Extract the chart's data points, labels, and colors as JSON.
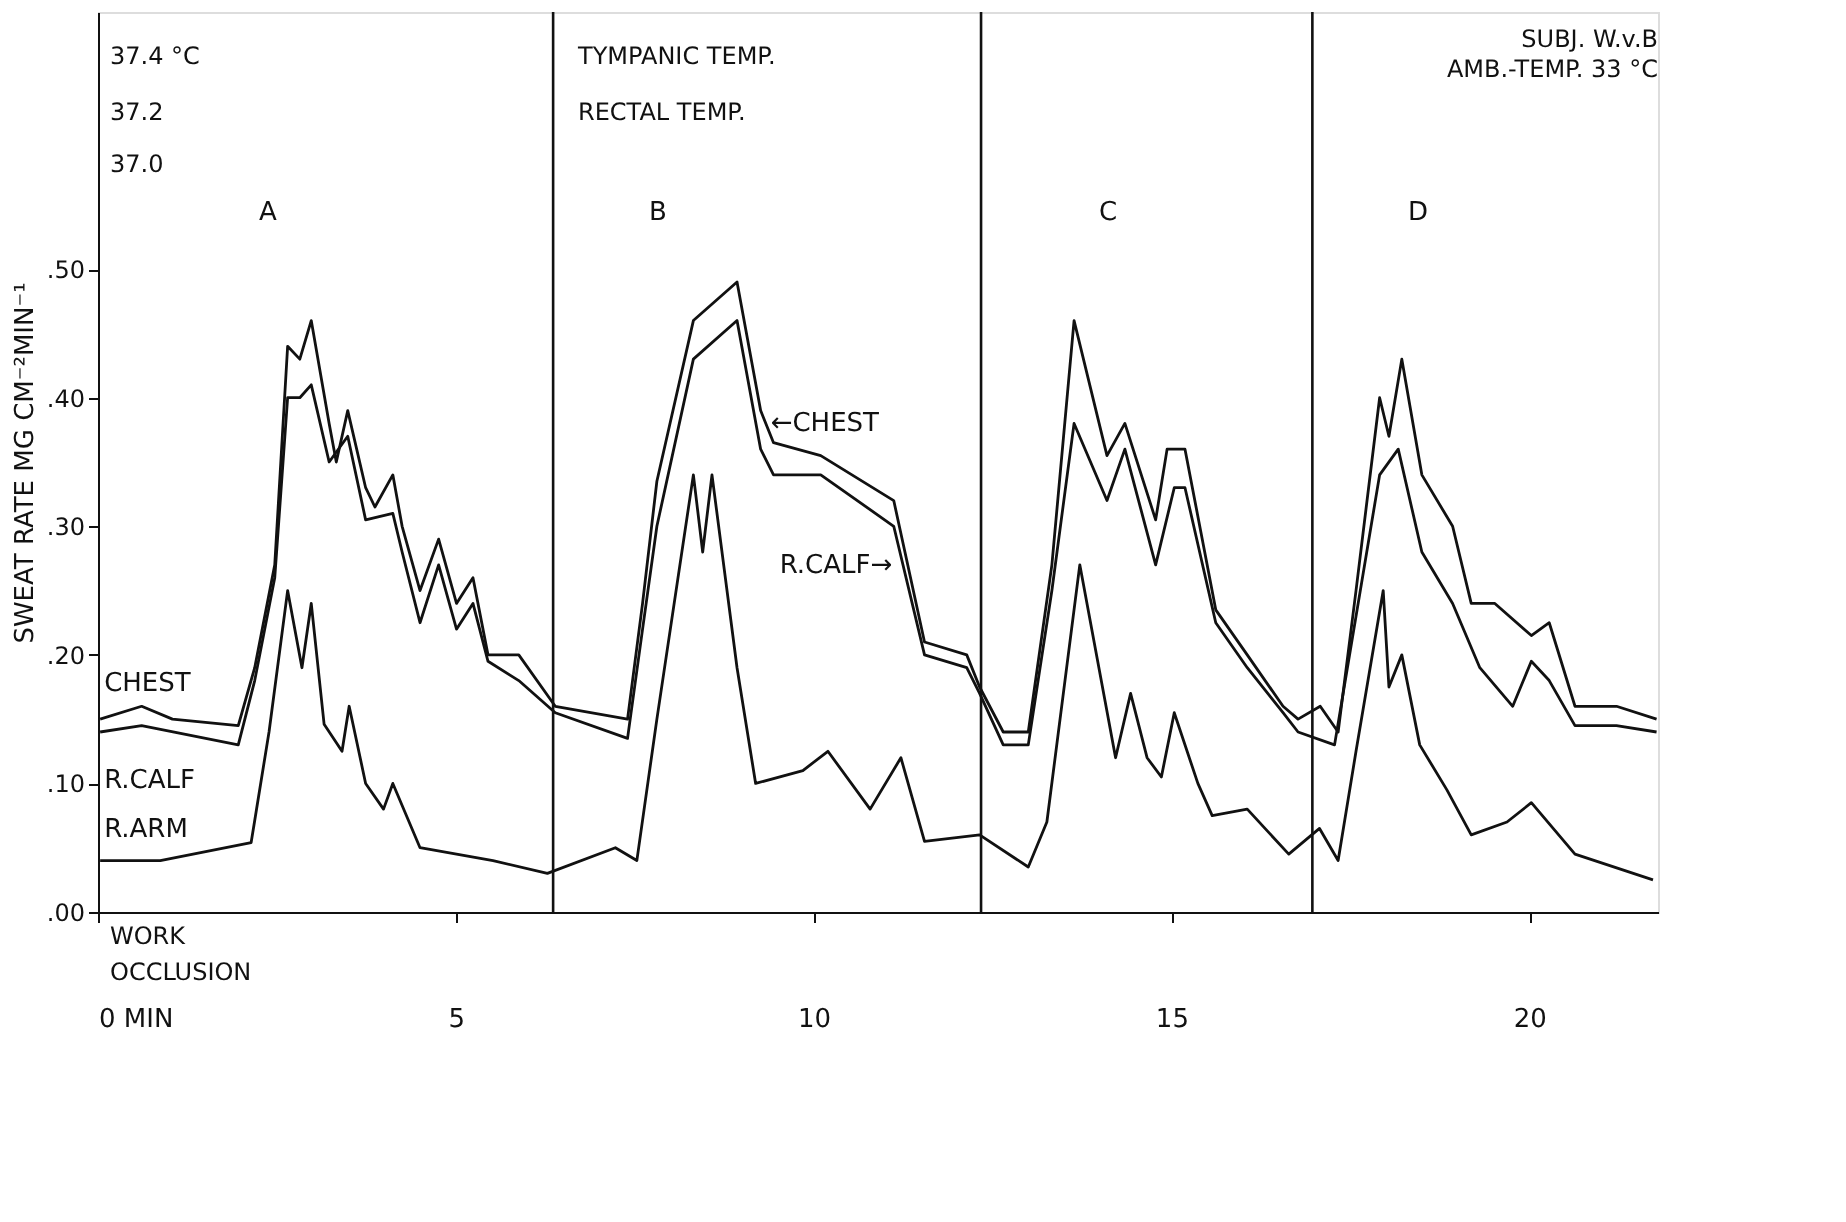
{
  "chart_data": {
    "type": "line",
    "title": "SUBJ. W.v.B",
    "subtitle": "AMB.-TEMP. 33 °C",
    "ylabel": "SWEAT RATE  MG CM⁻²MIN⁻¹",
    "xlim": [
      0,
      21.8
    ],
    "xticks": [
      {
        "value": 0,
        "label": "0 MIN"
      },
      5,
      10,
      15,
      20
    ],
    "ylim": [
      0,
      0.7
    ],
    "yticks": [
      {
        "value": 0,
        "label": ".00"
      },
      {
        "value": 0.1,
        "label": ".10"
      },
      {
        "value": 0.2,
        "label": ".20"
      },
      {
        "value": 0.3,
        "label": ".30"
      },
      {
        "value": 0.4,
        "label": ".40"
      },
      {
        "value": 0.5,
        "label": ".50"
      }
    ],
    "grid": false,
    "line_style": "solid",
    "series": [
      {
        "name": "CHEST",
        "color": "#111111",
        "x": [
          0.03,
          0.61,
          1.04,
          1.96,
          2.19,
          2.47,
          2.65,
          2.82,
          2.98,
          3.23,
          3.33,
          3.49,
          3.74,
          3.87,
          4.12,
          4.25,
          4.5,
          4.76,
          5.01,
          5.24,
          5.45,
          5.88,
          6.39,
          7.4,
          7.61,
          7.81,
          8.32,
          8.93,
          9.26,
          9.44,
          10.1,
          11.12,
          11.55,
          12.14,
          12.32,
          12.65,
          13.0,
          13.33,
          13.64,
          14.1,
          14.35,
          14.78,
          14.94,
          15.19,
          15.62,
          16.06,
          16.56,
          16.77,
          17.08,
          17.33,
          17.58,
          17.91,
          18.04,
          18.22,
          18.5,
          18.93,
          19.19,
          19.52,
          20.03,
          20.28,
          20.64,
          21.22,
          21.78
        ],
        "values": [
          0.15,
          0.16,
          0.15,
          0.145,
          0.19,
          0.27,
          0.44,
          0.43,
          0.46,
          0.38,
          0.35,
          0.39,
          0.33,
          0.315,
          0.34,
          0.3,
          0.25,
          0.29,
          0.24,
          0.26,
          0.2,
          0.2,
          0.16,
          0.15,
          0.24,
          0.335,
          0.46,
          0.49,
          0.39,
          0.365,
          0.355,
          0.32,
          0.21,
          0.2,
          0.175,
          0.14,
          0.14,
          0.27,
          0.46,
          0.355,
          0.38,
          0.305,
          0.36,
          0.36,
          0.235,
          0.2,
          0.16,
          0.15,
          0.16,
          0.14,
          0.25,
          0.4,
          0.37,
          0.43,
          0.34,
          0.3,
          0.24,
          0.24,
          0.215,
          0.225,
          0.16,
          0.16,
          0.15
        ]
      },
      {
        "name": "R.CALF",
        "color": "#111111",
        "x": [
          0.03,
          0.61,
          1.96,
          2.19,
          2.47,
          2.65,
          2.82,
          2.98,
          3.23,
          3.49,
          3.74,
          4.12,
          4.25,
          4.5,
          4.76,
          5.01,
          5.24,
          5.45,
          5.88,
          6.39,
          7.4,
          7.61,
          7.81,
          8.32,
          8.93,
          9.26,
          9.44,
          10.1,
          11.12,
          11.55,
          12.14,
          12.32,
          12.65,
          13.0,
          13.33,
          13.64,
          14.1,
          14.35,
          14.78,
          15.04,
          15.19,
          15.62,
          16.06,
          16.56,
          16.77,
          17.28,
          17.58,
          17.91,
          18.17,
          18.5,
          18.93,
          19.31,
          19.77,
          20.03,
          20.28,
          20.64,
          21.22,
          21.78
        ],
        "values": [
          0.14,
          0.145,
          0.13,
          0.18,
          0.26,
          0.4,
          0.4,
          0.41,
          0.35,
          0.37,
          0.305,
          0.31,
          0.28,
          0.225,
          0.27,
          0.22,
          0.24,
          0.195,
          0.18,
          0.155,
          0.135,
          0.22,
          0.3,
          0.43,
          0.46,
          0.36,
          0.34,
          0.34,
          0.3,
          0.2,
          0.19,
          0.17,
          0.13,
          0.13,
          0.25,
          0.38,
          0.32,
          0.36,
          0.27,
          0.33,
          0.33,
          0.225,
          0.19,
          0.155,
          0.14,
          0.13,
          0.23,
          0.34,
          0.36,
          0.28,
          0.24,
          0.19,
          0.16,
          0.195,
          0.18,
          0.145,
          0.145,
          0.14
        ]
      },
      {
        "name": "R.ARM",
        "color": "#111111",
        "x": [
          0.03,
          0.87,
          2.14,
          2.39,
          2.65,
          2.85,
          2.98,
          3.16,
          3.41,
          3.51,
          3.74,
          3.99,
          4.12,
          4.5,
          5.52,
          6.28,
          7.23,
          7.53,
          7.81,
          8.32,
          8.45,
          8.58,
          8.93,
          9.19,
          9.85,
          10.2,
          10.79,
          11.22,
          11.55,
          12.32,
          13.0,
          13.26,
          13.72,
          14.22,
          14.43,
          14.66,
          14.86,
          15.04,
          15.37,
          15.57,
          16.06,
          16.64,
          17.07,
          17.33,
          17.58,
          17.96,
          18.04,
          18.22,
          18.47,
          18.85,
          19.19,
          19.69,
          20.03,
          20.64,
          21.73
        ],
        "values": [
          0.04,
          0.04,
          0.054,
          0.14,
          0.25,
          0.19,
          0.24,
          0.146,
          0.125,
          0.16,
          0.1,
          0.08,
          0.1,
          0.05,
          0.04,
          0.03,
          0.05,
          0.04,
          0.15,
          0.34,
          0.28,
          0.34,
          0.19,
          0.1,
          0.11,
          0.125,
          0.08,
          0.12,
          0.055,
          0.06,
          0.035,
          0.07,
          0.27,
          0.12,
          0.17,
          0.12,
          0.105,
          0.155,
          0.1,
          0.075,
          0.08,
          0.045,
          0.065,
          0.04,
          0.125,
          0.25,
          0.175,
          0.2,
          0.13,
          0.095,
          0.06,
          0.07,
          0.085,
          0.045,
          0.025
        ]
      }
    ],
    "ref_lines": [
      {
        "axis": "x",
        "value": 6.36,
        "color": "#111111"
      },
      {
        "axis": "x",
        "value": 12.34,
        "color": "#111111"
      },
      {
        "axis": "x",
        "value": 16.97,
        "color": "#111111"
      }
    ],
    "annotations": [
      "A",
      "B",
      "C",
      "D",
      {
        "text": "←CHEST",
        "x": 9.4,
        "y": 0.38
      },
      {
        "text": "R.CALF→",
        "x": 11.1,
        "y": 0.27
      },
      "37.4 °C",
      "TYMPANIC TEMP.",
      "37.2",
      "RECTAL TEMP.",
      "37.0",
      "WORK",
      "OCCLUSION"
    ]
  }
}
